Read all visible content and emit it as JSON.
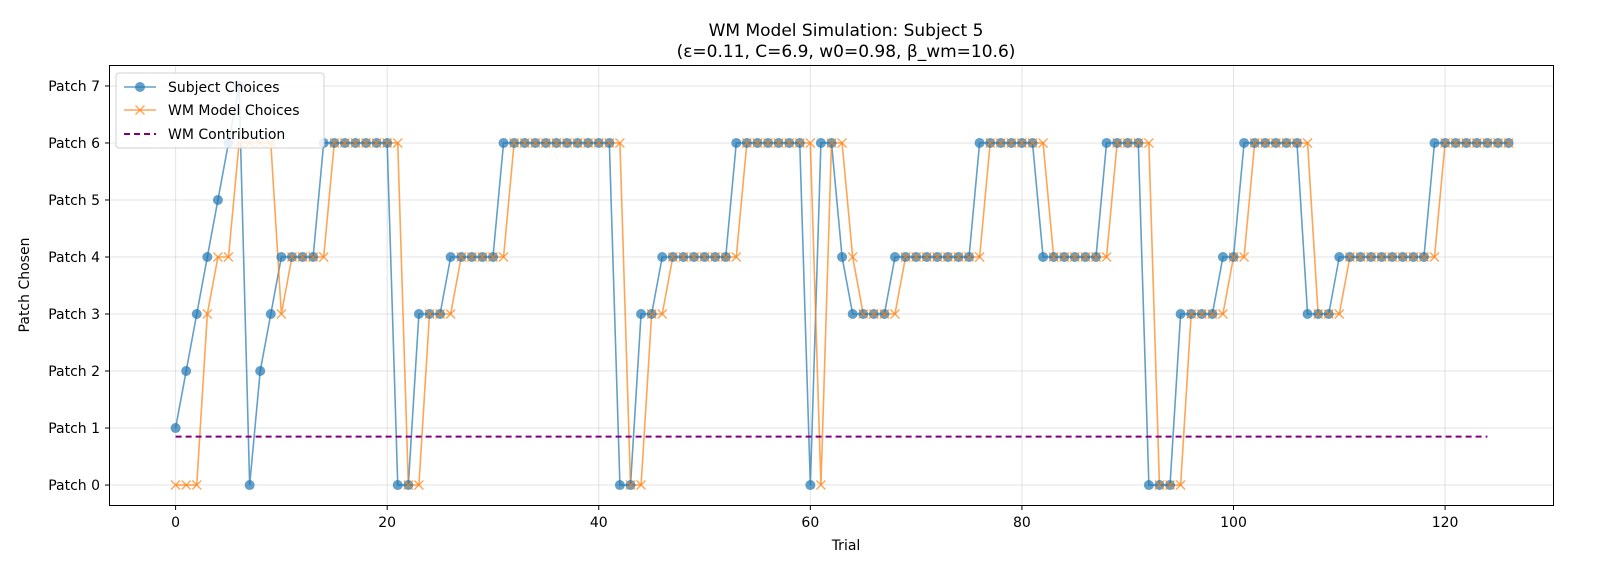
{
  "chart_data": {
    "type": "line",
    "title": "WM Model Simulation: Subject 5",
    "subtitle": "(ε=0.11, C=6.9, w0=0.98, β_wm=10.6)",
    "xlabel": "Trial",
    "ylabel": "Patch Chosen",
    "xlim": [
      -6.2,
      130.2
    ],
    "ylim": [
      -0.35,
      7.35
    ],
    "xticks": [
      0,
      20,
      40,
      60,
      80,
      100,
      120
    ],
    "xtick_labels": [
      "0",
      "20",
      "40",
      "60",
      "80",
      "100",
      "120"
    ],
    "yticks": [
      0,
      1,
      2,
      3,
      4,
      5,
      6,
      7
    ],
    "ytick_labels": [
      "Patch 0",
      "Patch 1",
      "Patch 2",
      "Patch 3",
      "Patch 4",
      "Patch 5",
      "Patch 6",
      "Patch 7"
    ],
    "grid": true,
    "legend_position": "upper-left",
    "series": [
      {
        "name": "Subject Choices",
        "color": "#1f77b4",
        "marker": "circle",
        "values": [
          1,
          2,
          3,
          4,
          5,
          6,
          7,
          0,
          2,
          3,
          4,
          4,
          4,
          4,
          6,
          6,
          6,
          6,
          6,
          6,
          6,
          0,
          0,
          3,
          3,
          3,
          4,
          4,
          4,
          4,
          4,
          6,
          6,
          6,
          6,
          6,
          6,
          6,
          6,
          6,
          6,
          6,
          0,
          0,
          3,
          3,
          4,
          4,
          4,
          4,
          4,
          4,
          4,
          6,
          6,
          6,
          6,
          6,
          6,
          6,
          0,
          6,
          6,
          4,
          3,
          3,
          3,
          3,
          4,
          4,
          4,
          4,
          4,
          4,
          4,
          4,
          6,
          6,
          6,
          6,
          6,
          6,
          4,
          4,
          4,
          4,
          4,
          4,
          6,
          6,
          6,
          6,
          0,
          0,
          0,
          3,
          3,
          3,
          3,
          4,
          4,
          6,
          6,
          6,
          6,
          6,
          6,
          3,
          3,
          3,
          4,
          4,
          4,
          4,
          4,
          4,
          4,
          4,
          4,
          6,
          6,
          6,
          6,
          6,
          6,
          6,
          6
        ]
      },
      {
        "name": "WM Model Choices",
        "color": "#ff7f0e",
        "marker": "x",
        "values": [
          0,
          0,
          0,
          3,
          4,
          4,
          6,
          6,
          6,
          6,
          3,
          4,
          4,
          4,
          4,
          6,
          6,
          6,
          6,
          6,
          6,
          6,
          0,
          0,
          3,
          3,
          3,
          4,
          4,
          4,
          4,
          4,
          6,
          6,
          6,
          6,
          6,
          6,
          6,
          6,
          6,
          6,
          6,
          0,
          0,
          3,
          3,
          4,
          4,
          4,
          4,
          4,
          4,
          4,
          6,
          6,
          6,
          6,
          6,
          6,
          6,
          0,
          6,
          6,
          4,
          3,
          3,
          3,
          3,
          4,
          4,
          4,
          4,
          4,
          4,
          4,
          4,
          6,
          6,
          6,
          6,
          6,
          6,
          4,
          4,
          4,
          4,
          4,
          4,
          6,
          6,
          6,
          6,
          0,
          0,
          0,
          3,
          3,
          3,
          3,
          4,
          4,
          6,
          6,
          6,
          6,
          6,
          6,
          3,
          3,
          3,
          4,
          4,
          4,
          4,
          4,
          4,
          4,
          4,
          4,
          6,
          6,
          6,
          6,
          6,
          6,
          6
        ]
      },
      {
        "name": "WM Contribution",
        "color": "#800080",
        "style": "dashed",
        "x": [
          0,
          124
        ],
        "values": [
          0.85,
          0.85
        ]
      }
    ]
  }
}
